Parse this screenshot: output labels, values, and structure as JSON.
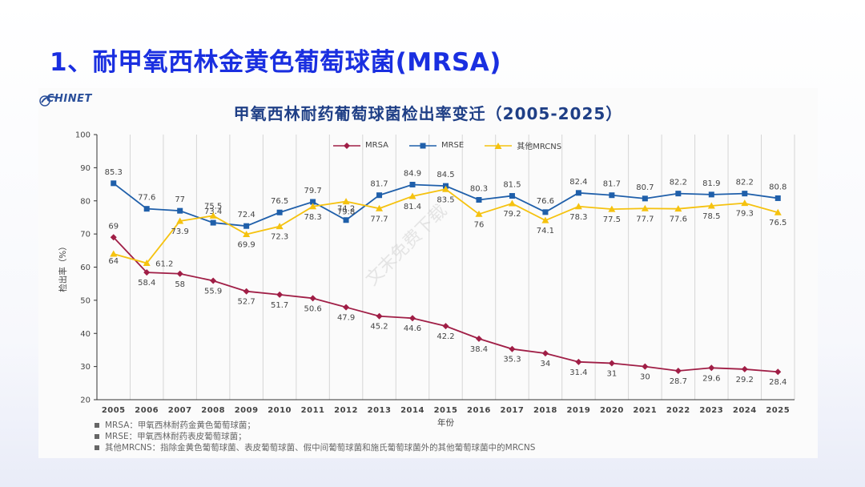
{
  "slide_title": "1、耐甲氧西林金黄色葡萄球菌(MRSA)",
  "logo_text": "CHINET",
  "watermark": "文末免费下载",
  "chart_data": {
    "type": "line",
    "title": "甲氧西林耐药葡萄球菌检出率变迁（2005-2025）",
    "xlabel": "年份",
    "ylabel": "检出率（%）",
    "ylim": [
      20,
      100
    ],
    "yticks": [
      20,
      30,
      40,
      50,
      60,
      70,
      80,
      90,
      100
    ],
    "grid": true,
    "legend_position": "top-center",
    "categories": [
      "2005",
      "2006",
      "2007",
      "2008",
      "2009",
      "2010",
      "2011",
      "2012",
      "2013",
      "2014",
      "2015",
      "2016",
      "2017",
      "2018",
      "2019",
      "2020",
      "2021",
      "2022",
      "2023",
      "2024",
      "2025"
    ],
    "series": [
      {
        "name": "MRSA",
        "color": "#a01e46",
        "marker": "diamond",
        "values": [
          69,
          58.4,
          58,
          55.9,
          52.7,
          51.7,
          50.6,
          47.9,
          45.2,
          44.6,
          42.2,
          38.4,
          35.3,
          34,
          31.4,
          31,
          30,
          28.7,
          29.6,
          29.2,
          28.4
        ]
      },
      {
        "name": "MRSE",
        "color": "#1f5faa",
        "marker": "square",
        "values": [
          85.3,
          77.6,
          77,
          73.4,
          72.4,
          76.5,
          79.7,
          74.2,
          81.7,
          84.9,
          84.5,
          80.3,
          81.5,
          76.6,
          82.4,
          81.7,
          80.7,
          82.2,
          81.9,
          82.2,
          80.8
        ]
      },
      {
        "name": "其他MRCNS",
        "color": "#f5c20f",
        "marker": "triangle",
        "values": [
          64,
          61.2,
          73.9,
          75.5,
          69.9,
          72.3,
          78.3,
          79.8,
          77.7,
          81.4,
          83.5,
          76,
          79.2,
          74.1,
          78.3,
          77.5,
          77.7,
          77.6,
          78.5,
          79.3,
          76.5
        ]
      }
    ]
  },
  "footnotes": [
    "MRSA：甲氧西林耐药金黄色葡萄球菌；",
    "MRSE：甲氧西林耐药表皮葡萄球菌；",
    "其他MRCNS：指除金黄色葡萄球菌、表皮葡萄球菌、假中间葡萄球菌和施氏葡萄球菌外的其他葡萄球菌中的MRCNS"
  ]
}
